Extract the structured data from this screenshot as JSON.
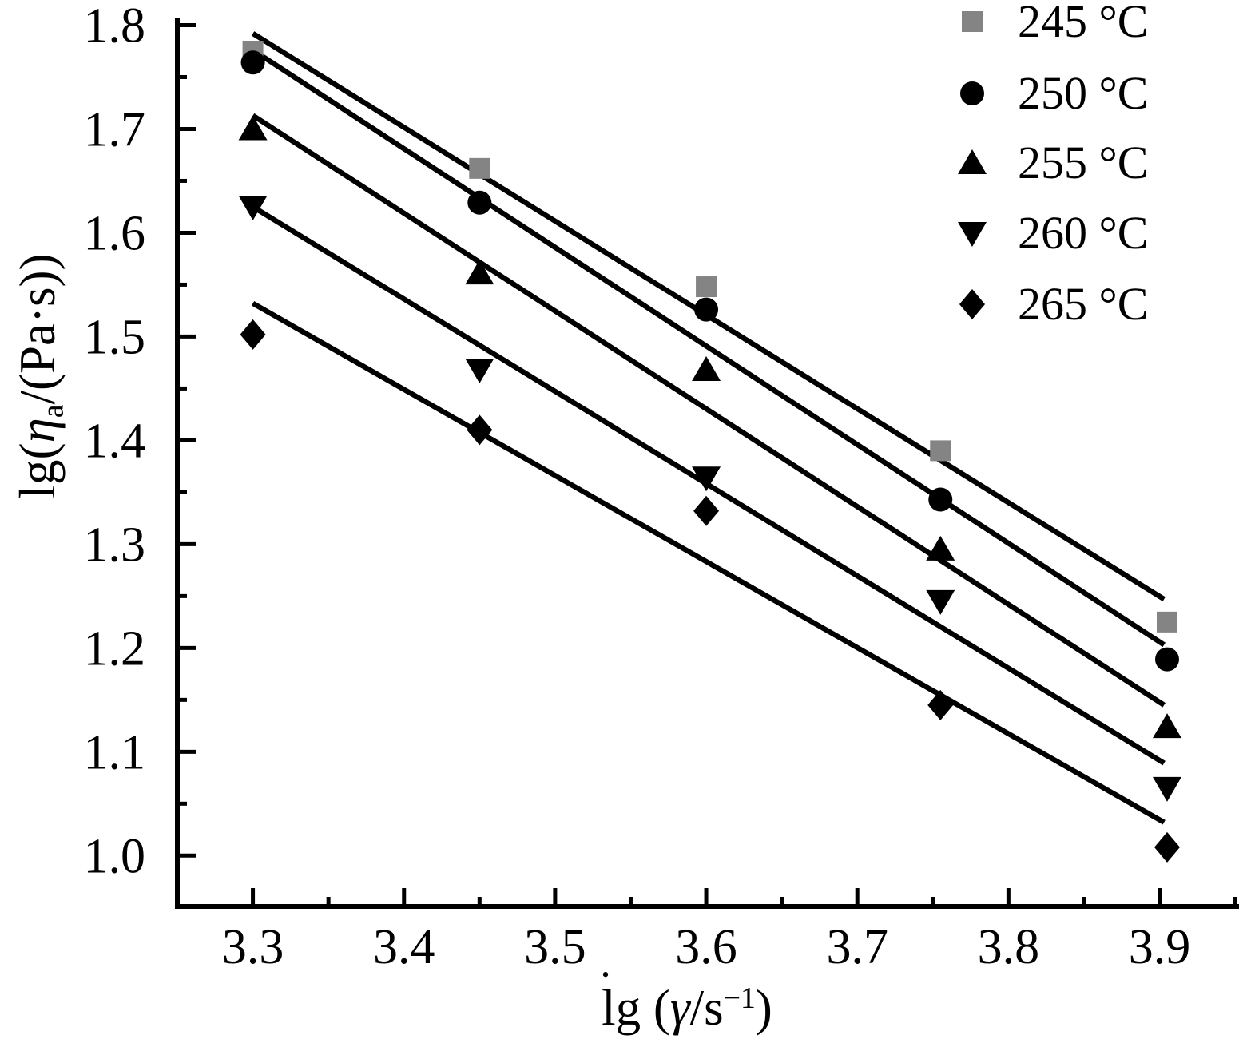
{
  "figure": {
    "background": "#ffffff",
    "axis_color": "#000000",
    "xlabel_parts": {
      "l": "l",
      "dot": "•",
      "g_open": "g (",
      "gamma": "γ",
      "per_s": "/s",
      "exp": "−1",
      "close": ")"
    },
    "ylabel_parts": {
      "pre": "lg(",
      "eta": "η",
      "sub": "a",
      "post": "/(Pa·s))"
    }
  },
  "chart_data": {
    "type": "scatter",
    "title": "",
    "xlabel": "lg(γ̇/s⁻¹)",
    "ylabel": "lg(ηa/(Pa·s))",
    "xlim": [
      3.25,
      3.951
    ],
    "ylim": [
      0.951,
      1.805
    ],
    "grid": false,
    "legend_position": "upper-right",
    "x_ticks": [
      3.3,
      3.4,
      3.5,
      3.6,
      3.7,
      3.8,
      3.9
    ],
    "x_tick_labels": [
      "3.3",
      "3.4",
      "3.5",
      "3.6",
      "3.7",
      "3.8",
      "3.9"
    ],
    "x_minor_ticks": [
      3.35,
      3.45,
      3.55,
      3.65,
      3.75,
      3.85,
      3.95
    ],
    "y_ticks": [
      1.0,
      1.1,
      1.2,
      1.3,
      1.4,
      1.5,
      1.6,
      1.7,
      1.8
    ],
    "y_tick_labels": [
      "1.0",
      "1.1",
      "1.2",
      "1.3",
      "1.4",
      "1.5",
      "1.6",
      "1.7",
      "1.8"
    ],
    "y_minor_ticks": [
      1.05,
      1.15,
      1.25,
      1.35,
      1.45,
      1.55,
      1.65,
      1.75
    ],
    "x": [
      3.3,
      3.45,
      3.6,
      3.755,
      3.905
    ],
    "series": [
      {
        "name": "245 °C",
        "marker": "square",
        "marker_color": "#848484",
        "line_color": "#000000",
        "y": [
          1.775,
          1.662,
          1.548,
          1.39,
          1.225
        ],
        "fit_line": {
          "x": [
            3.3,
            3.903
          ],
          "y": [
            1.792,
            1.247
          ]
        }
      },
      {
        "name": "250 °C",
        "marker": "circle",
        "marker_color": "#000000",
        "line_color": "#000000",
        "y": [
          1.764,
          1.629,
          1.526,
          1.343,
          1.189
        ],
        "fit_line": {
          "x": [
            3.3,
            3.903
          ],
          "y": [
            1.776,
            1.203
          ]
        }
      },
      {
        "name": "255 °C",
        "marker": "triangle-up",
        "marker_color": "#000000",
        "line_color": "#000000",
        "y": [
          1.7,
          1.561,
          1.468,
          1.295,
          1.124
        ],
        "fit_line": {
          "x": [
            3.3,
            3.903
          ],
          "y": [
            1.713,
            1.145
          ]
        }
      },
      {
        "name": "260 °C",
        "marker": "triangle-down",
        "marker_color": "#000000",
        "line_color": "#000000",
        "y": [
          1.625,
          1.468,
          1.364,
          1.245,
          1.065
        ],
        "fit_line": {
          "x": [
            3.3,
            3.903
          ],
          "y": [
            1.625,
            1.089
          ]
        }
      },
      {
        "name": "265 °C",
        "marker": "diamond",
        "marker_color": "#000000",
        "line_color": "#000000",
        "y": [
          1.502,
          1.41,
          1.332,
          1.145,
          1.008
        ],
        "fit_line": {
          "x": [
            3.3,
            3.903
          ],
          "y": [
            1.532,
            1.032
          ]
        }
      }
    ]
  }
}
